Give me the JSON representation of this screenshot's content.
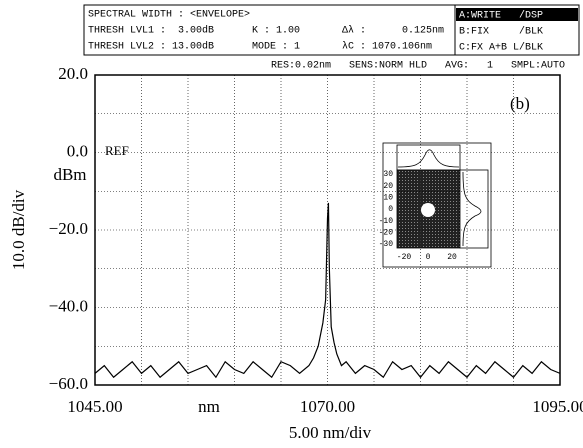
{
  "header": {
    "line1": "SPECTRAL WIDTH : <ENVELOPE>",
    "thresh1": "THRESH LVL1 :  3.00dB",
    "k": "K :  1.00",
    "dl": "Δλ :      0.125nm",
    "thresh2": "THRESH LVL2 : 13.00dB",
    "mode": "MODE : 1",
    "lc": "λC : 1070.106nm",
    "traceA": "A:WRITE   /DSP",
    "traceB": "B:FIX     /BLK",
    "traceC": "C:FX A+B L/BLK",
    "status": "RES:0.02nm   SENS:NORM HLD   AVG:   1   SMPL:AUTO"
  },
  "chart_data": {
    "type": "line",
    "y_label": "10.0 dB/div",
    "y_unit": "dBm",
    "x_unit": "nm",
    "x_label": "5.00 nm/div",
    "ref_label": "REF",
    "annotation": "(b)",
    "color": "#000000",
    "x": [
      1045,
      1046,
      1047,
      1048,
      1049,
      1050,
      1051,
      1052,
      1053,
      1054,
      1055,
      1056,
      1057,
      1058,
      1059,
      1060,
      1061,
      1062,
      1063,
      1064,
      1065,
      1066,
      1067,
      1068,
      1068.5,
      1069,
      1069.5,
      1069.8,
      1070.0,
      1070.1,
      1070.2,
      1070.4,
      1070.7,
      1071,
      1071.5,
      1072,
      1073,
      1074,
      1075,
      1076,
      1077,
      1078,
      1079,
      1080,
      1081,
      1082,
      1083,
      1084,
      1085,
      1086,
      1087,
      1088,
      1089,
      1090,
      1091,
      1092,
      1093,
      1094,
      1095
    ],
    "values": [
      -57,
      -55,
      -58,
      -56,
      -54,
      -57,
      -55,
      -58,
      -56,
      -54,
      -57,
      -56,
      -55,
      -58,
      -54,
      -56,
      -57,
      -54,
      -56,
      -58,
      -54,
      -55,
      -57,
      -55,
      -53,
      -50,
      -44,
      -38,
      -17,
      -13,
      -30,
      -45,
      -49,
      -52,
      -55,
      -54,
      -57,
      -55,
      -56,
      -58,
      -54,
      -56,
      -55,
      -58,
      -55,
      -57,
      -54,
      -56,
      -58,
      -55,
      -57,
      -54,
      -56,
      -58,
      -55,
      -57,
      -54,
      -56,
      -57
    ],
    "xlim": [
      1045,
      1095
    ],
    "ylim": [
      -60,
      20
    ],
    "xticks": [
      {
        "value": 1045,
        "label": "1045.00"
      },
      {
        "value": 1070,
        "label": "1070.00"
      },
      {
        "value": 1095,
        "label": "1095.00"
      }
    ],
    "minor_xticks": [
      1050,
      1055,
      1060,
      1065,
      1075,
      1080,
      1085,
      1090
    ],
    "yticks": [
      {
        "value": -60,
        "label": "−60.0"
      },
      {
        "value": -40,
        "label": "−40.0"
      },
      {
        "value": -20,
        "label": "−20.0"
      },
      {
        "value": 0,
        "label": "0.0"
      },
      {
        "value": 20,
        "label": "20.0"
      }
    ],
    "minor_yticks": [
      -50,
      -30,
      -10,
      10
    ],
    "grid": true,
    "inset_yticks": [
      "30",
      "20",
      "10",
      "0",
      "-10",
      "-20",
      "-30"
    ],
    "inset_xticks": [
      "-20",
      "0",
      "20"
    ]
  }
}
